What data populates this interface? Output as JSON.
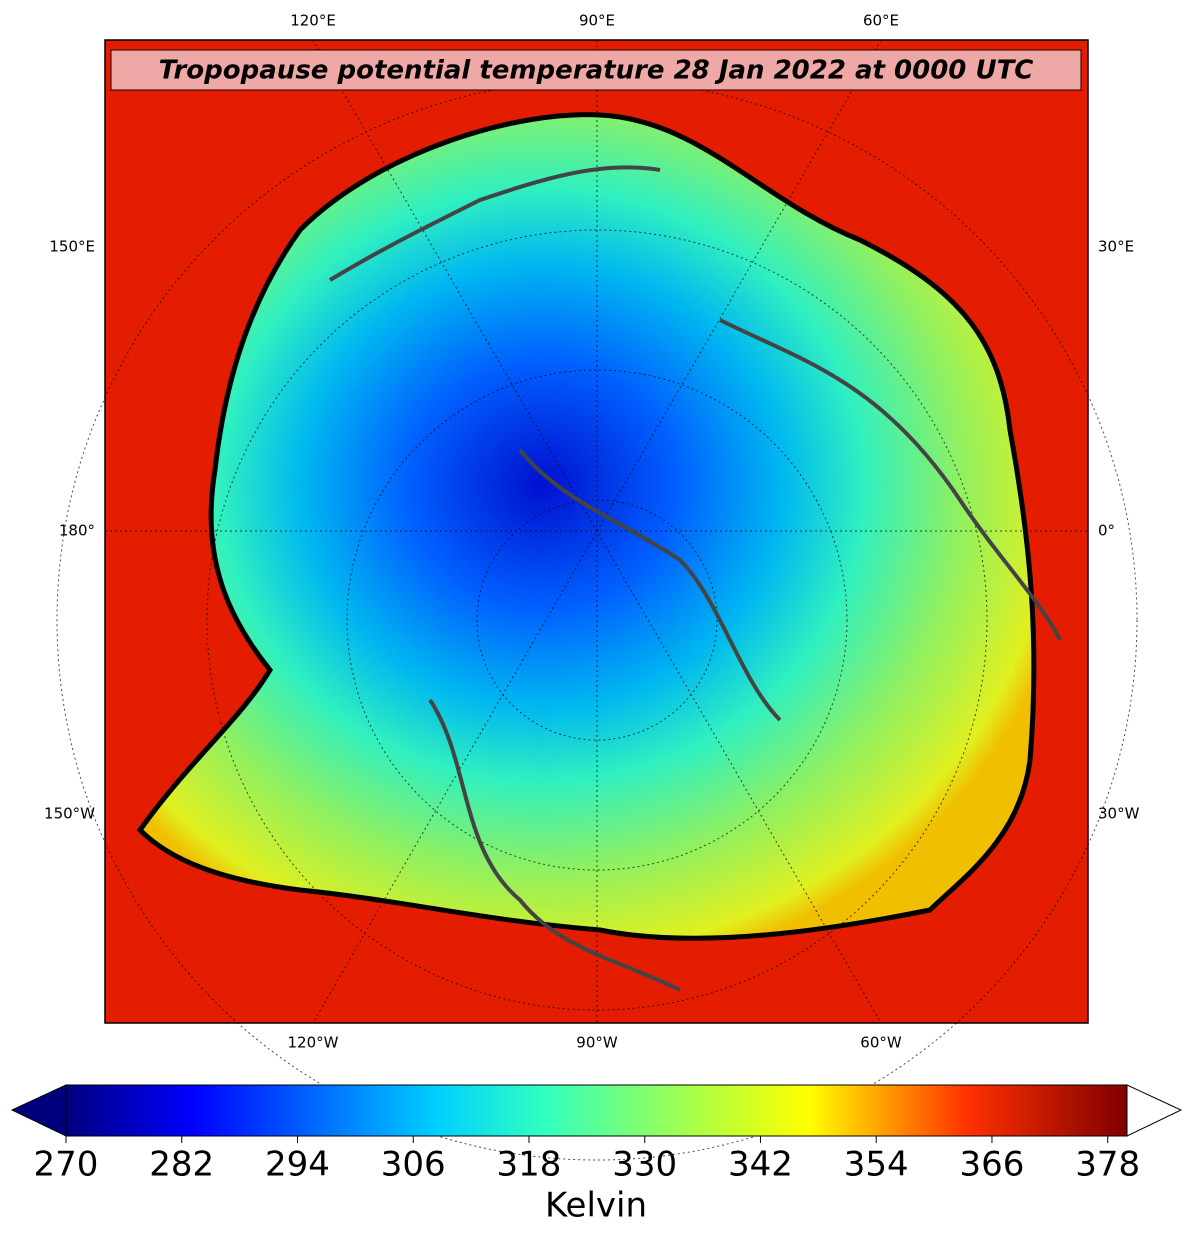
{
  "title": "Tropopause potential temperature 28 Jan 2022 at 0000 UTC",
  "map": {
    "top_labels": [
      "120°E",
      "90°E",
      "60°E"
    ],
    "bottom_labels": [
      "120°W",
      "90°W",
      "60°W"
    ],
    "left_labels": [
      "150°E",
      "180°",
      "150°W"
    ],
    "right_labels": [
      "30°E",
      "0°",
      "30°W"
    ]
  },
  "colorbar": {
    "range": [
      270,
      380
    ],
    "ticks": [
      270,
      282,
      294,
      306,
      318,
      330,
      342,
      354,
      366,
      378
    ],
    "label": "Kelvin"
  }
}
